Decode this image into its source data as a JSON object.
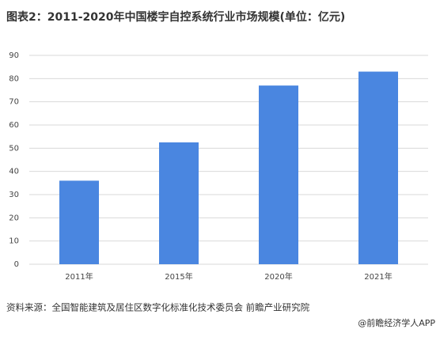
{
  "chart_data": {
    "type": "bar",
    "title": "图表2：2011-2020年中国楼宇自控系统行业市场规模(单位：亿元)",
    "categories": [
      "2011年",
      "2015年",
      "2020年",
      "2021年"
    ],
    "values": [
      36,
      52.5,
      77,
      83
    ],
    "color": "#4a86e0",
    "ylim": [
      0,
      90
    ],
    "yticks": [
      0,
      10,
      20,
      30,
      40,
      50,
      60,
      70,
      80,
      90
    ],
    "grid": true,
    "source": "资料来源：全国智能建筑及居住区数字化标准化技术委员会 前瞻产业研究院",
    "footer": "@前瞻经济学人APP"
  }
}
